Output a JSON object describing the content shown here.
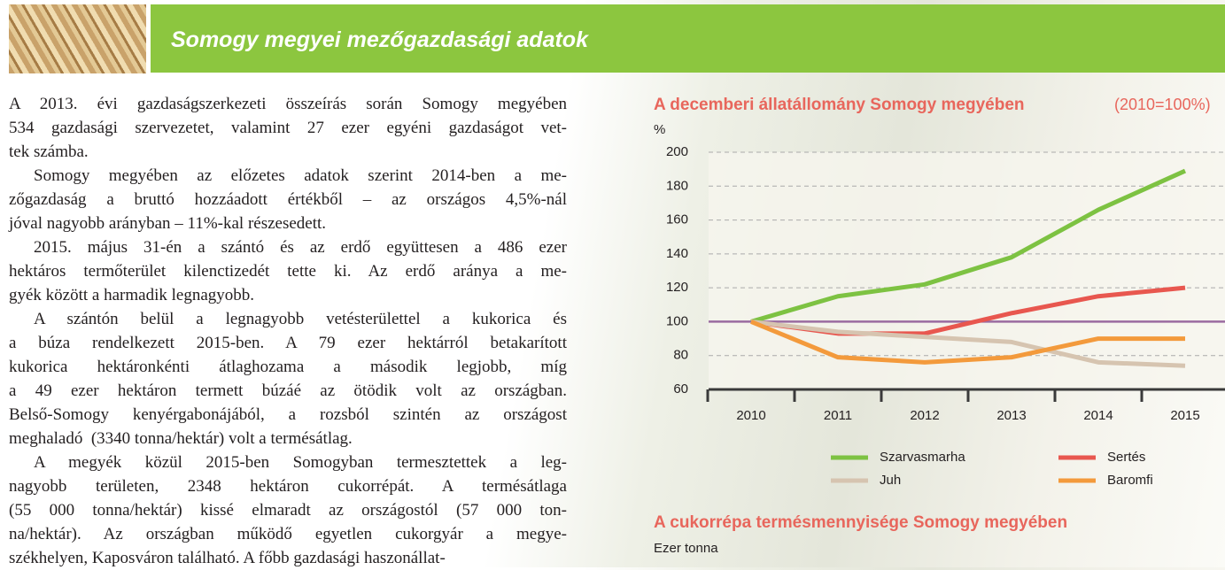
{
  "header": {
    "title": "Somogy megyei mezőgazdasági adatok"
  },
  "body": {
    "paragraphs": [
      [
        "A 2013. évi gazdaságszerkezeti összeírás során Somogy megyében",
        "534 gazdasági szervezetet, valamint 27 ezer egyéni gazdaságot vet-",
        "tek számba."
      ],
      [
        "Somogy megyében az előzetes adatok szerint 2014-ben a me-",
        "zőgazdaság a bruttó hozzáadott értékből – az országos 4,5%-nál",
        "jóval nagyobb arányban – 11%-kal részesedett."
      ],
      [
        "2015. május 31-én a szántó és az erdő együttesen a 486 ezer",
        "hektáros termőterület kilenctizedét tette ki. Az erdő aránya a me-",
        "gyék között a harmadik legnagyobb."
      ],
      [
        "A szántón belül a legnagyobb vetésterülettel a kukorica és",
        "a búza rendelkezett 2015-ben. A 79 ezer hektárról betakarított",
        "kukorica hektáronkénti átlaghozama a második legjobb, míg",
        "a 49 ezer hektáron termett búzáé az ötödik volt az országban.",
        "Belső-Somogy kenyérgabonájából, a rozsból szintén az országost",
        "meghaladó  (3340 tonna/hektár) volt a termésátlag."
      ],
      [
        "A megyék közül 2015-ben Somogyban termesztettek a leg-",
        "nagyobb területen, 2348 hektáron cukorrépát. A termésátlaga",
        "(55 000 tonna/hektár) kissé elmaradt az országostól (57 000 ton-",
        "na/hektár). Az országban működő egyetlen cukorgyár a megye-",
        "székhelyen, Kaposváron található. A főbb gazdasági haszonállat-"
      ]
    ]
  },
  "chart_data": {
    "type": "line",
    "title": "A decemberi állatállomány Somogy megyében",
    "subtitle": "(2010=100%)",
    "y_label": "%",
    "categories": [
      "2010",
      "2011",
      "2012",
      "2013",
      "2014",
      "2015"
    ],
    "series": [
      {
        "name": "Szarvasmarha",
        "color": "#7dc242",
        "values": [
          100,
          115,
          122,
          138,
          166,
          189
        ]
      },
      {
        "name": "Sertés",
        "color": "#e8574f",
        "values": [
          100,
          93,
          93,
          105,
          115,
          120
        ]
      },
      {
        "name": "Juh",
        "color": "#d6c4b0",
        "values": [
          100,
          94,
          91,
          88,
          76,
          74
        ]
      },
      {
        "name": "Baromfi",
        "color": "#f39a3c",
        "values": [
          100,
          79,
          76,
          79,
          90,
          90
        ]
      }
    ],
    "reference_line": 100,
    "reference_color": "#9a6ba0",
    "ylim": [
      60,
      200
    ],
    "yticks": [
      60,
      80,
      100,
      120,
      140,
      160,
      180,
      200
    ],
    "grid": true
  },
  "next_chart": {
    "title": "A cukorrépa termésmennyisége Somogy megyében",
    "y_label": "Ezer tonna"
  }
}
